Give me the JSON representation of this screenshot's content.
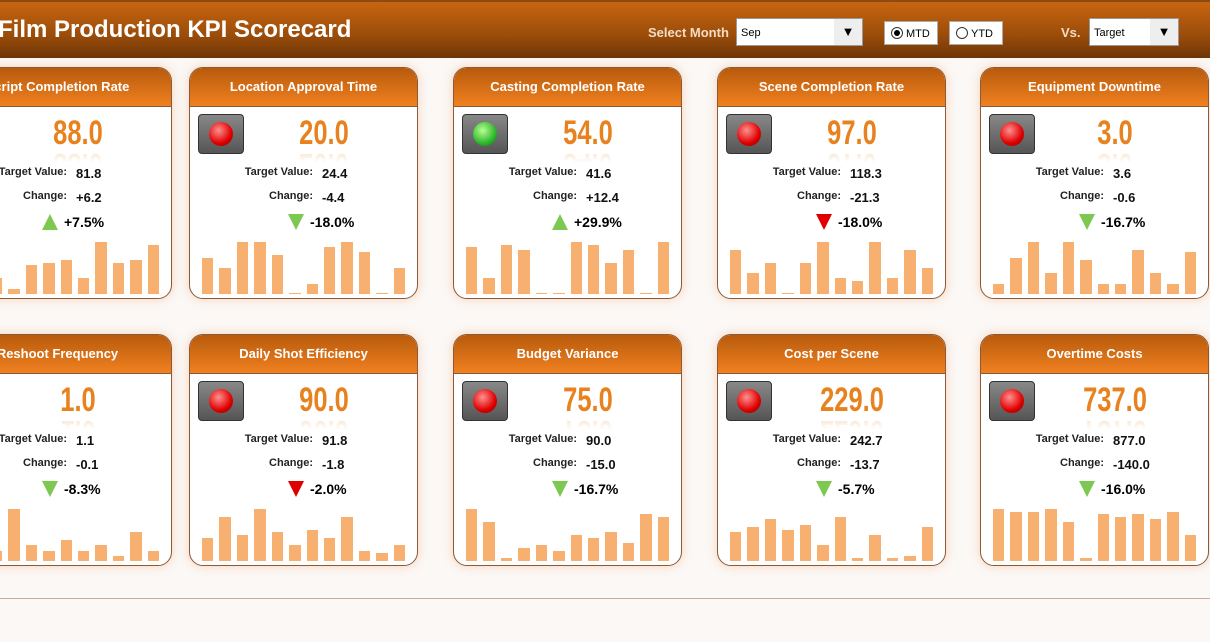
{
  "header": {
    "title": "Film Production KPI Scorecard",
    "select_month_label": "Select Month",
    "month": "Sep",
    "mtd": "MTD",
    "ytd": "YTD",
    "selected_mode": "MTD",
    "vs_label": "Vs.",
    "vs": "Target"
  },
  "labels": {
    "target": "Target Value:",
    "change": "Change:"
  },
  "colors": {
    "accent": "#e8821e",
    "bar": "#f8b070",
    "up": "#7cc850",
    "down_good": "#7cc850",
    "down_bad": "#e00000"
  },
  "cards": [
    {
      "title": "Script Completion Rate",
      "value": "88.0",
      "target": "81.8",
      "change": "+6.2",
      "pct": "+7.5%",
      "dir": "up",
      "arrow_color": "#7cc850",
      "light": "none",
      "bars": [
        0.4,
        0.55,
        0.3,
        0.1,
        0.55,
        0.6,
        0.65,
        0.3,
        1.0,
        0.6,
        0.65,
        0.95
      ]
    },
    {
      "title": "Location Approval Time",
      "value": "20.0",
      "target": "24.4",
      "change": "-4.4",
      "pct": "-18.0%",
      "dir": "down",
      "arrow_color": "#7cc850",
      "light": "red",
      "bars": [
        0.7,
        0.5,
        1.0,
        1.0,
        0.75,
        0.02,
        0.2,
        0.9,
        1.0,
        0.8,
        0.02,
        0.5
      ]
    },
    {
      "title": "Casting Completion Rate",
      "value": "54.0",
      "target": "41.6",
      "change": "+12.4",
      "pct": "+29.9%",
      "dir": "up",
      "arrow_color": "#7cc850",
      "light": "green",
      "bars": [
        0.9,
        0.3,
        0.95,
        0.85,
        0.02,
        0.02,
        1.0,
        0.95,
        0.6,
        0.85,
        0.02,
        1.0
      ]
    },
    {
      "title": "Scene Completion Rate",
      "value": "97.0",
      "target": "118.3",
      "change": "-21.3",
      "pct": "-18.0%",
      "dir": "down",
      "arrow_color": "#e00000",
      "light": "red",
      "bars": [
        0.85,
        0.4,
        0.6,
        0.02,
        0.6,
        1.0,
        0.3,
        0.25,
        1.0,
        0.3,
        0.85,
        0.5
      ]
    },
    {
      "title": "Equipment Downtime",
      "value": "3.0",
      "target": "3.6",
      "change": "-0.6",
      "pct": "-16.7%",
      "dir": "down",
      "arrow_color": "#7cc850",
      "light": "red",
      "bars": [
        0.2,
        0.7,
        1.0,
        0.4,
        1.0,
        0.65,
        0.2,
        0.2,
        0.85,
        0.4,
        0.2,
        0.8
      ]
    },
    {
      "title": "Reshoot Frequency",
      "value": "1.0",
      "target": "1.1",
      "change": "-0.1",
      "pct": "-8.3%",
      "dir": "down",
      "arrow_color": "#7cc850",
      "light": "none",
      "bars": [
        0.6,
        0.4,
        0.2,
        1.0,
        0.3,
        0.2,
        0.4,
        0.2,
        0.3,
        0.1,
        0.55,
        0.2
      ]
    },
    {
      "title": "Daily Shot Efficiency",
      "value": "90.0",
      "target": "91.8",
      "change": "-1.8",
      "pct": "-2.0%",
      "dir": "down",
      "arrow_color": "#e00000",
      "light": "red",
      "bars": [
        0.45,
        0.85,
        0.5,
        1.0,
        0.55,
        0.3,
        0.6,
        0.45,
        0.85,
        0.2,
        0.15,
        0.3
      ]
    },
    {
      "title": "Budget Variance",
      "value": "75.0",
      "target": "90.0",
      "change": "-15.0",
      "pct": "-16.7%",
      "dir": "down",
      "arrow_color": "#7cc850",
      "light": "red",
      "bars": [
        1.0,
        0.75,
        0.05,
        0.25,
        0.3,
        0.2,
        0.5,
        0.45,
        0.55,
        0.35,
        0.9,
        0.85
      ]
    },
    {
      "title": "Cost per Scene",
      "value": "229.0",
      "target": "242.7",
      "change": "-13.7",
      "pct": "-5.7%",
      "dir": "down",
      "arrow_color": "#7cc850",
      "light": "red",
      "bars": [
        0.55,
        0.65,
        0.8,
        0.6,
        0.7,
        0.3,
        0.85,
        0.05,
        0.5,
        0.05,
        0.1,
        0.65
      ]
    },
    {
      "title": "Overtime Costs",
      "value": "737.0",
      "target": "877.0",
      "change": "-140.0",
      "pct": "-16.0%",
      "dir": "down",
      "arrow_color": "#7cc850",
      "light": "red",
      "bars": [
        1.0,
        0.95,
        0.95,
        1.0,
        0.75,
        0.05,
        0.9,
        0.85,
        0.9,
        0.8,
        0.95,
        0.5
      ]
    }
  ]
}
